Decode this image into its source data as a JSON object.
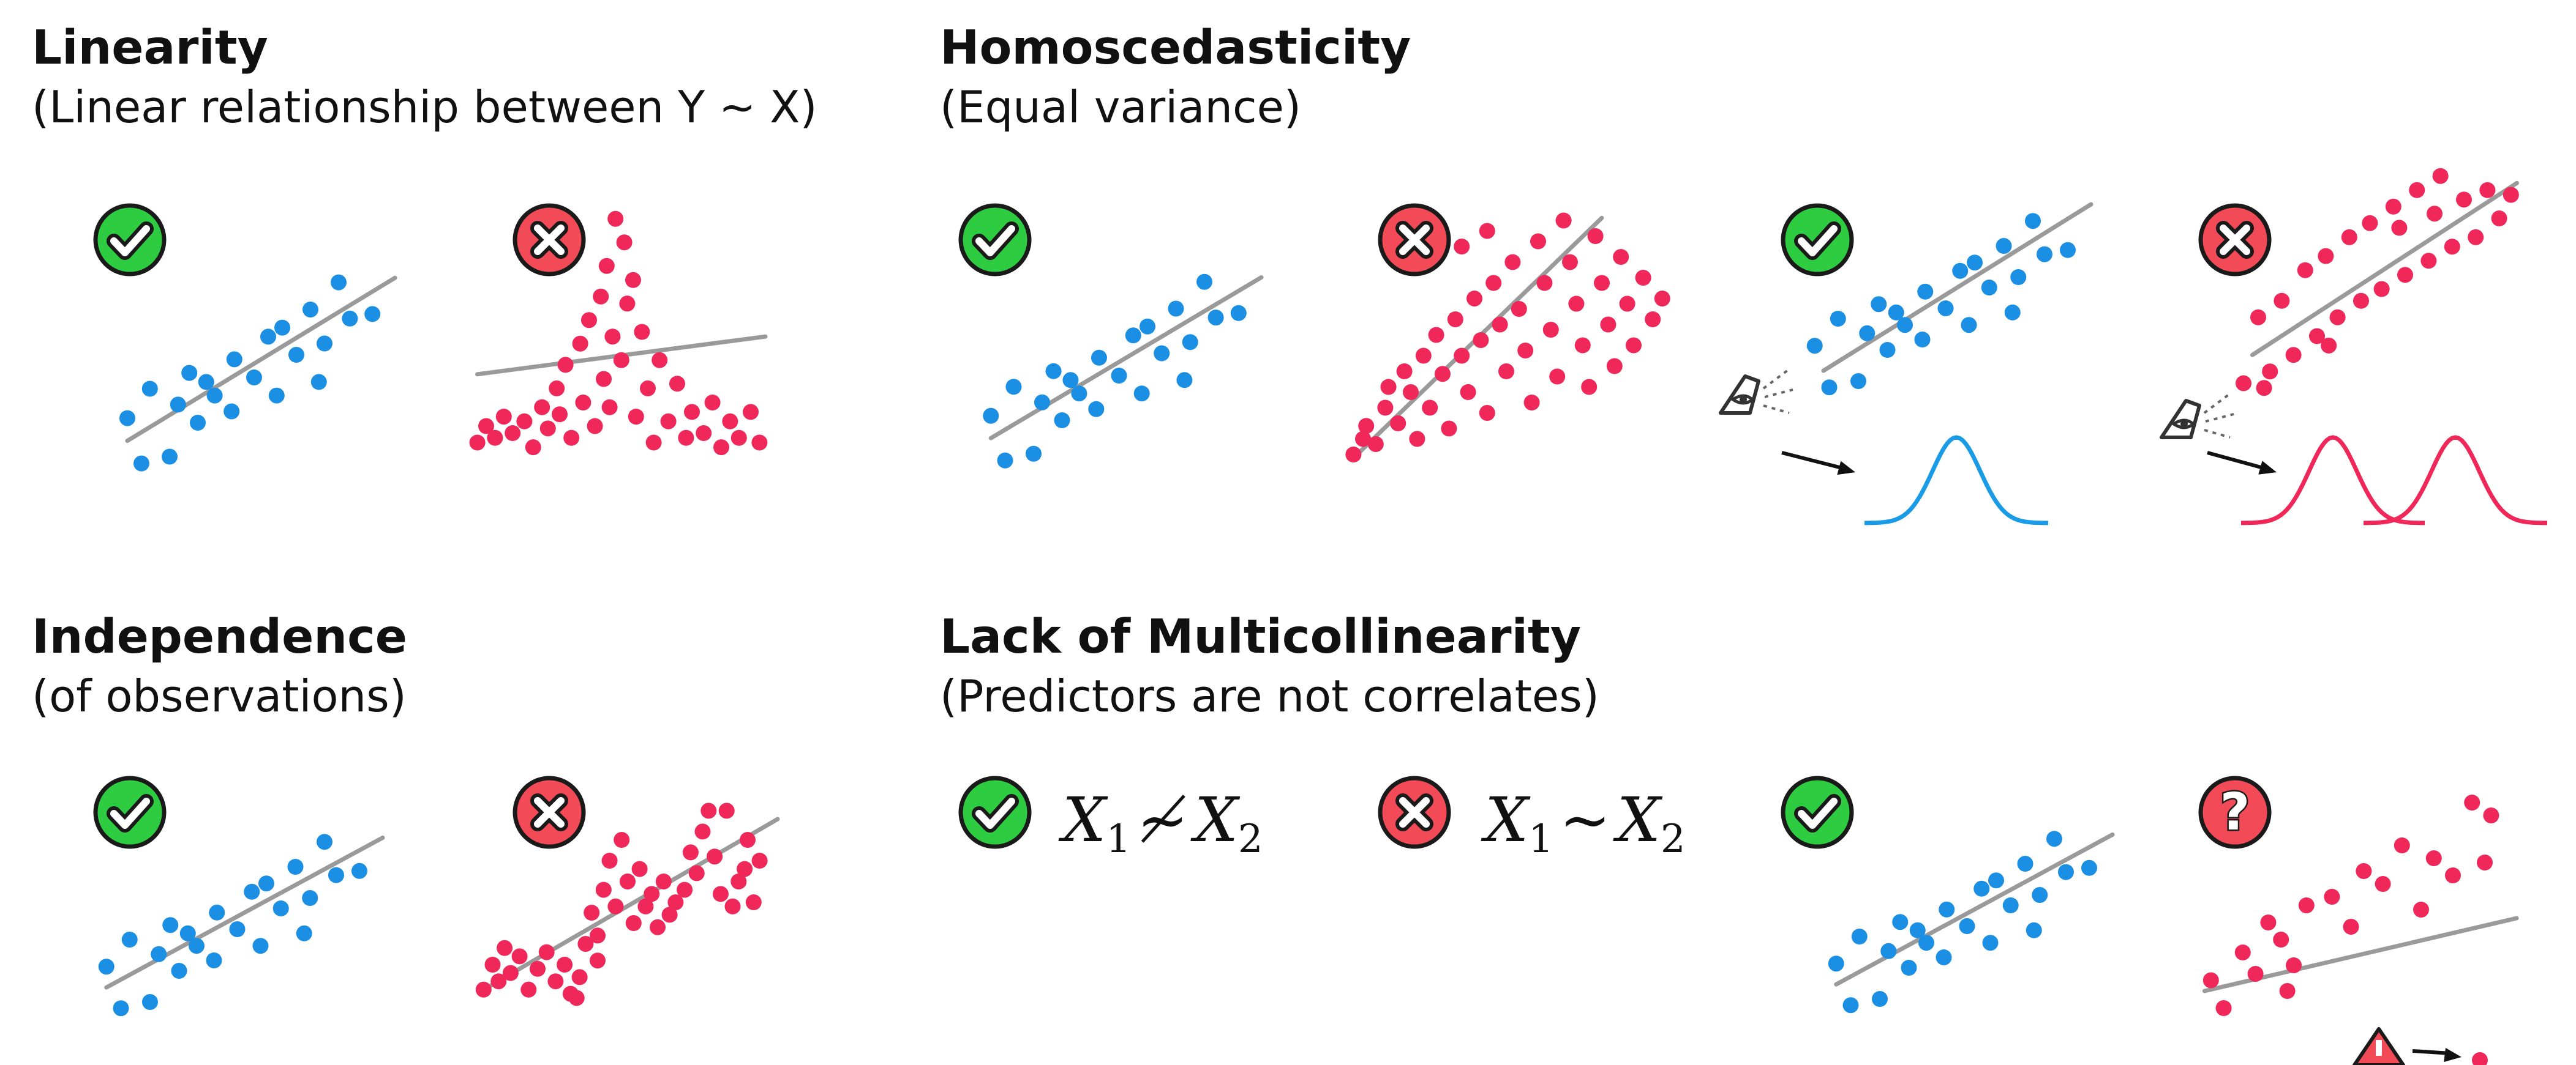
{
  "sections": {
    "linearity": {
      "title": "Linearity",
      "subtitle": "(Linear relationship between Y ~ X)"
    },
    "homoscedasticity": {
      "title": "Homoscedasticity",
      "subtitle": "(Equal variance)"
    },
    "independence": {
      "title": "Independence",
      "subtitle": "(of observations)"
    },
    "multicollinearity": {
      "title": "Lack of Multicollinearity",
      "subtitle": "(Predictors are not correlates)",
      "good_formula": {
        "left": "X",
        "left_sub": "1",
        "relation": "≁",
        "right": "X",
        "right_sub": "2"
      },
      "bad_formula": {
        "left": "X",
        "left_sub": "1",
        "relation": "~",
        "right": "X",
        "right_sub": "2"
      }
    }
  },
  "colors": {
    "good_points": "#1a8fe3",
    "bad_points": "#f0285a",
    "fit_line": "#9a9a9a",
    "check_badge": "#2ecc40",
    "cross_badge": "#f24b57",
    "question_badge": "#f24b57",
    "normal_curve_good": "#1a9be6",
    "normal_curve_bad": "#f0285a"
  },
  "icons": {
    "good_badge": "check-circle-icon",
    "bad_badge": "x-circle-icon",
    "uncertain_badge": "question-circle-icon",
    "observer": "eye-icon",
    "warning": "warning-triangle-icon"
  }
}
